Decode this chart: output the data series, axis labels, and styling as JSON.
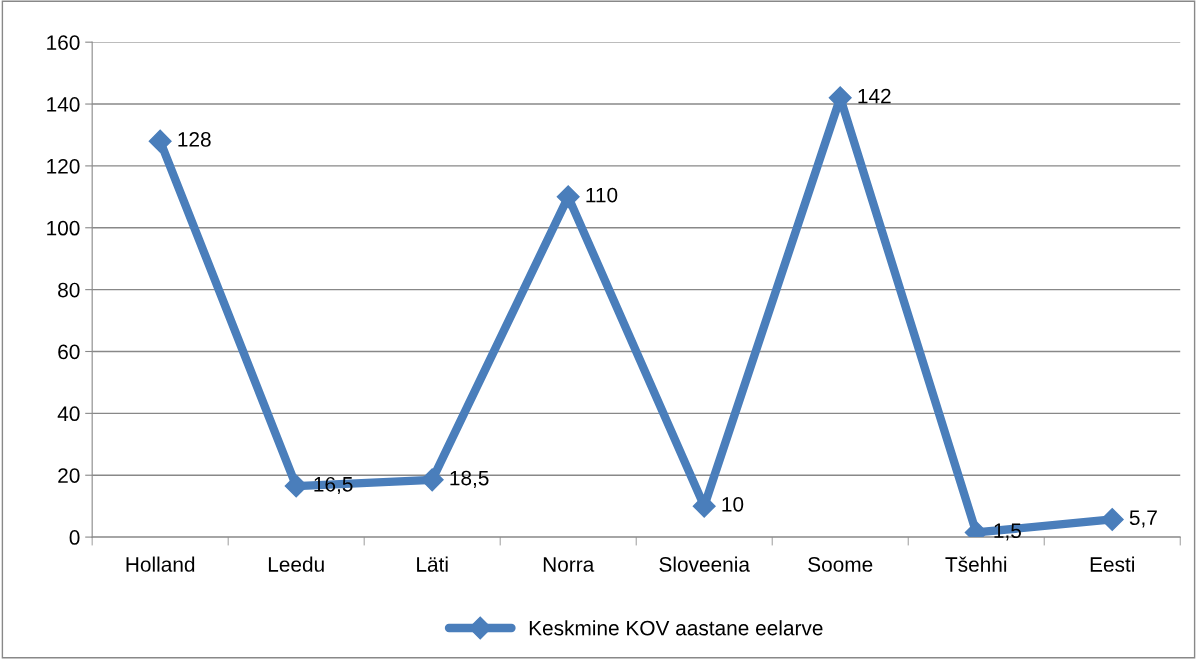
{
  "chart_data": {
    "type": "line",
    "categories": [
      "Holland",
      "Leedu",
      "Läti",
      "Norra",
      "Sloveenia",
      "Soome",
      "Tšehhi",
      "Eesti"
    ],
    "series": [
      {
        "name": "Keskmine KOV aastane eelarve",
        "color": "#4a7ebb",
        "values": [
          128,
          16.5,
          18.5,
          110,
          10,
          142,
          1.5,
          5.7
        ],
        "value_labels": [
          "128",
          "16,5",
          "18,5",
          "110",
          "10",
          "142",
          "1,5",
          "5,7"
        ]
      }
    ],
    "ylim": [
      0,
      160
    ],
    "yticks": [
      0,
      20,
      40,
      60,
      80,
      100,
      120,
      140,
      160
    ],
    "grid": "y",
    "legend": "bottom",
    "marker": "diamond",
    "line_style": "solid"
  }
}
